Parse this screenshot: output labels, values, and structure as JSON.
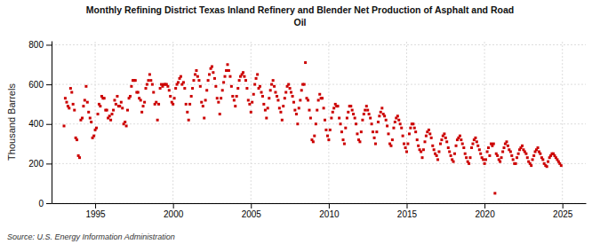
{
  "chart_data": {
    "type": "scatter",
    "title": "Monthly Refining District Texas Inland Refinery and Blender Net Production of Asphalt and Road\nOil",
    "ylabel": "Thousand Barrels",
    "annotations": [
      "Source: U.S. Energy Information Administration"
    ],
    "color": "#cc0000",
    "marker": "square",
    "grid": true,
    "xlim": [
      1992.2,
      2026.5
    ],
    "xticks": [
      1995,
      2000,
      2005,
      2010,
      2015,
      2020,
      2025
    ],
    "ylim": [
      0,
      820
    ],
    "yticks": [
      0,
      200,
      400,
      600,
      800
    ],
    "x": [
      1993.0,
      1993.08,
      1993.17,
      1993.25,
      1993.33,
      1993.42,
      1993.5,
      1993.58,
      1993.67,
      1993.75,
      1993.83,
      1993.92,
      1994.0,
      1994.08,
      1994.17,
      1994.25,
      1994.33,
      1994.42,
      1994.5,
      1994.58,
      1994.67,
      1994.75,
      1994.83,
      1994.92,
      1995.0,
      1995.08,
      1995.17,
      1995.25,
      1995.33,
      1995.42,
      1995.5,
      1995.58,
      1995.67,
      1995.75,
      1995.83,
      1995.92,
      1996.0,
      1996.08,
      1996.17,
      1996.25,
      1996.33,
      1996.42,
      1996.5,
      1996.58,
      1996.67,
      1996.75,
      1996.83,
      1996.92,
      1997.0,
      1997.08,
      1997.17,
      1997.25,
      1997.33,
      1997.42,
      1997.5,
      1997.58,
      1997.67,
      1997.75,
      1997.83,
      1997.92,
      1998.0,
      1998.08,
      1998.17,
      1998.25,
      1998.33,
      1998.42,
      1998.5,
      1998.58,
      1998.67,
      1998.75,
      1998.83,
      1998.92,
      1999.0,
      1999.08,
      1999.17,
      1999.25,
      1999.33,
      1999.42,
      1999.5,
      1999.58,
      1999.67,
      1999.75,
      1999.83,
      1999.92,
      2000.0,
      2000.08,
      2000.17,
      2000.25,
      2000.33,
      2000.42,
      2000.5,
      2000.58,
      2000.67,
      2000.75,
      2000.83,
      2000.92,
      2001.0,
      2001.08,
      2001.17,
      2001.25,
      2001.33,
      2001.42,
      2001.5,
      2001.58,
      2001.67,
      2001.75,
      2001.83,
      2001.92,
      2002.0,
      2002.08,
      2002.17,
      2002.25,
      2002.33,
      2002.42,
      2002.5,
      2002.58,
      2002.67,
      2002.75,
      2002.83,
      2002.92,
      2003.0,
      2003.08,
      2003.17,
      2003.25,
      2003.33,
      2003.42,
      2003.5,
      2003.58,
      2003.67,
      2003.75,
      2003.83,
      2003.92,
      2004.0,
      2004.08,
      2004.17,
      2004.25,
      2004.33,
      2004.42,
      2004.5,
      2004.58,
      2004.67,
      2004.75,
      2004.83,
      2004.92,
      2005.0,
      2005.08,
      2005.17,
      2005.25,
      2005.33,
      2005.42,
      2005.5,
      2005.58,
      2005.67,
      2005.75,
      2005.83,
      2005.92,
      2006.0,
      2006.08,
      2006.17,
      2006.25,
      2006.33,
      2006.42,
      2006.5,
      2006.58,
      2006.67,
      2006.75,
      2006.83,
      2006.92,
      2007.0,
      2007.08,
      2007.17,
      2007.25,
      2007.33,
      2007.42,
      2007.5,
      2007.58,
      2007.67,
      2007.75,
      2007.83,
      2007.92,
      2008.0,
      2008.08,
      2008.17,
      2008.25,
      2008.33,
      2008.42,
      2008.5,
      2008.58,
      2008.67,
      2008.75,
      2008.83,
      2008.92,
      2009.0,
      2009.08,
      2009.17,
      2009.25,
      2009.33,
      2009.42,
      2009.5,
      2009.58,
      2009.67,
      2009.75,
      2009.83,
      2009.92,
      2010.0,
      2010.08,
      2010.17,
      2010.25,
      2010.33,
      2010.42,
      2010.5,
      2010.58,
      2010.67,
      2010.75,
      2010.83,
      2010.92,
      2011.0,
      2011.08,
      2011.17,
      2011.25,
      2011.33,
      2011.42,
      2011.5,
      2011.58,
      2011.67,
      2011.75,
      2011.83,
      2011.92,
      2012.0,
      2012.08,
      2012.17,
      2012.25,
      2012.33,
      2012.42,
      2012.5,
      2012.58,
      2012.67,
      2012.75,
      2012.83,
      2012.92,
      2013.0,
      2013.08,
      2013.17,
      2013.25,
      2013.33,
      2013.42,
      2013.5,
      2013.58,
      2013.67,
      2013.75,
      2013.83,
      2013.92,
      2014.0,
      2014.08,
      2014.17,
      2014.25,
      2014.33,
      2014.42,
      2014.5,
      2014.58,
      2014.67,
      2014.75,
      2014.83,
      2014.92,
      2015.0,
      2015.08,
      2015.17,
      2015.25,
      2015.33,
      2015.42,
      2015.5,
      2015.58,
      2015.67,
      2015.75,
      2015.83,
      2015.92,
      2016.0,
      2016.08,
      2016.17,
      2016.25,
      2016.33,
      2016.42,
      2016.5,
      2016.58,
      2016.67,
      2016.75,
      2016.83,
      2016.92,
      2017.0,
      2017.08,
      2017.17,
      2017.25,
      2017.33,
      2017.42,
      2017.5,
      2017.58,
      2017.67,
      2017.75,
      2017.83,
      2017.92,
      2018.0,
      2018.08,
      2018.17,
      2018.25,
      2018.33,
      2018.42,
      2018.5,
      2018.58,
      2018.67,
      2018.75,
      2018.83,
      2018.92,
      2019.0,
      2019.08,
      2019.17,
      2019.25,
      2019.33,
      2019.42,
      2019.5,
      2019.58,
      2019.67,
      2019.75,
      2019.83,
      2019.92,
      2020.0,
      2020.08,
      2020.17,
      2020.25,
      2020.33,
      2020.42,
      2020.5,
      2020.58,
      2020.67,
      2020.75,
      2020.83,
      2020.92,
      2021.0,
      2021.08,
      2021.17,
      2021.25,
      2021.33,
      2021.42,
      2021.5,
      2021.58,
      2021.67,
      2021.75,
      2021.83,
      2021.92,
      2022.0,
      2022.08,
      2022.17,
      2022.25,
      2022.33,
      2022.42,
      2022.5,
      2022.58,
      2022.67,
      2022.75,
      2022.83,
      2022.92,
      2023.0,
      2023.08,
      2023.17,
      2023.25,
      2023.33,
      2023.42,
      2023.5,
      2023.58,
      2023.67,
      2023.75,
      2023.83,
      2023.92,
      2024.0,
      2024.08,
      2024.17,
      2024.25,
      2024.33,
      2024.42,
      2024.5,
      2024.58,
      2024.67,
      2024.75,
      2024.83,
      2024.92
    ],
    "values": [
      390,
      530,
      510,
      490,
      480,
      580,
      560,
      500,
      470,
      330,
      320,
      240,
      230,
      420,
      430,
      490,
      520,
      590,
      510,
      460,
      430,
      410,
      330,
      340,
      370,
      380,
      450,
      500,
      490,
      540,
      530,
      530,
      470,
      470,
      430,
      440,
      420,
      450,
      470,
      520,
      500,
      540,
      490,
      490,
      510,
      480,
      400,
      410,
      390,
      470,
      530,
      540,
      590,
      620,
      620,
      620,
      560,
      560,
      530,
      520,
      460,
      490,
      510,
      580,
      600,
      620,
      650,
      620,
      600,
      560,
      500,
      510,
      420,
      500,
      580,
      600,
      590,
      600,
      600,
      600,
      590,
      570,
      540,
      510,
      500,
      530,
      580,
      600,
      610,
      630,
      640,
      600,
      610,
      580,
      500,
      460,
      420,
      500,
      540,
      580,
      620,
      650,
      670,
      640,
      620,
      590,
      510,
      490,
      430,
      520,
      570,
      620,
      650,
      680,
      690,
      660,
      630,
      590,
      530,
      510,
      450,
      530,
      570,
      610,
      640,
      670,
      700,
      670,
      640,
      590,
      540,
      520,
      490,
      540,
      580,
      620,
      640,
      650,
      660,
      640,
      620,
      580,
      520,
      500,
      460,
      510,
      550,
      600,
      630,
      650,
      580,
      590,
      560,
      540,
      500,
      470,
      430,
      480,
      530,
      570,
      600,
      620,
      590,
      560,
      540,
      520,
      480,
      460,
      420,
      490,
      530,
      560,
      590,
      600,
      580,
      560,
      540,
      510,
      470,
      450,
      400,
      480,
      520,
      570,
      600,
      600,
      710,
      530,
      520,
      470,
      430,
      320,
      310,
      340,
      400,
      470,
      520,
      550,
      530,
      530,
      480,
      420,
      370,
      340,
      320,
      370,
      430,
      460,
      480,
      500,
      490,
      490,
      430,
      400,
      360,
      320,
      300,
      380,
      430,
      460,
      490,
      490,
      470,
      450,
      430,
      400,
      350,
      320,
      310,
      360,
      420,
      450,
      470,
      490,
      470,
      450,
      430,
      400,
      360,
      330,
      300,
      360,
      410,
      440,
      460,
      480,
      450,
      440,
      420,
      390,
      350,
      300,
      290,
      320,
      380,
      410,
      430,
      440,
      420,
      400,
      380,
      340,
      300,
      280,
      260,
      300,
      350,
      380,
      400,
      400,
      380,
      360,
      320,
      290,
      270,
      260,
      230,
      270,
      310,
      340,
      360,
      370,
      350,
      330,
      290,
      270,
      250,
      240,
      220,
      260,
      300,
      320,
      340,
      350,
      330,
      310,
      280,
      260,
      240,
      220,
      210,
      250,
      290,
      320,
      330,
      340,
      320,
      300,
      280,
      250,
      230,
      210,
      200,
      230,
      280,
      300,
      320,
      330,
      310,
      290,
      270,
      250,
      230,
      220,
      200,
      220,
      260,
      280,
      240,
      300,
      290,
      300,
      50,
      250,
      240,
      220,
      210,
      230,
      260,
      280,
      300,
      310,
      290,
      270,
      260,
      240,
      220,
      200,
      200,
      230,
      250,
      270,
      280,
      290,
      270,
      260,
      250,
      230,
      210,
      200,
      190,
      220,
      240,
      260,
      270,
      280,
      260,
      250,
      230,
      220,
      200,
      190,
      185,
      210,
      230,
      240,
      250,
      250,
      240,
      230,
      220,
      210,
      200,
      190
    ]
  }
}
